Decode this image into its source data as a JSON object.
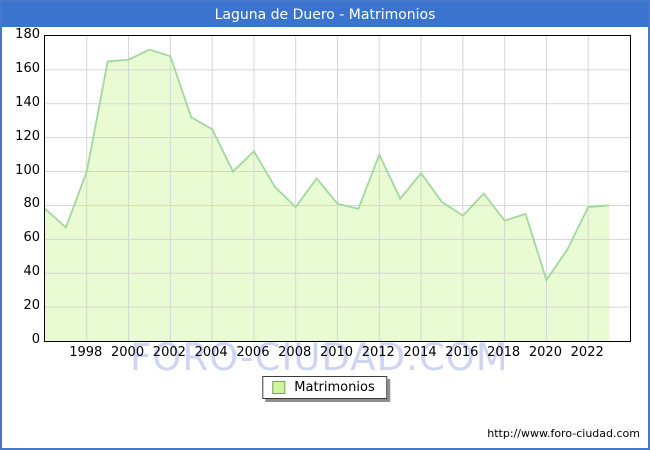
{
  "window": {
    "title": "Laguna de Duero - Matrimonios",
    "footer_url": "http://www.foro-ciudad.com",
    "watermark": "FORO-CIUDAD.COM"
  },
  "legend": {
    "label": "Matrimonios"
  },
  "colors": {
    "titlebar": "#3b74ce",
    "window_border": "#4679cb",
    "area_fill": "#e9fbd2",
    "line": "#a2d89e",
    "grid": "#d6d6d6",
    "plot_border": "#000000",
    "watermark": "#becbee",
    "legend_swatch": "#cdf49e"
  },
  "chart_data": {
    "type": "area",
    "title": "Laguna de Duero - Matrimonios",
    "x": [
      1996,
      1997,
      1998,
      1999,
      2000,
      2001,
      2002,
      2003,
      2004,
      2005,
      2006,
      2007,
      2008,
      2009,
      2010,
      2011,
      2012,
      2013,
      2014,
      2015,
      2016,
      2017,
      2018,
      2019,
      2020,
      2021,
      2022,
      2023
    ],
    "series": [
      {
        "name": "Matrimonios",
        "values": [
          78,
          67,
          100,
          165,
          166,
          172,
          168,
          132,
          125,
          100,
          112,
          91,
          79,
          96,
          81,
          78,
          110,
          84,
          99,
          82,
          74,
          87,
          71,
          75,
          36,
          54,
          79,
          80
        ]
      }
    ],
    "xlim": [
      1996,
      2024
    ],
    "ylim": [
      0,
      180
    ],
    "y_ticks": [
      0,
      20,
      40,
      60,
      80,
      100,
      120,
      140,
      160,
      180
    ],
    "x_tick_labels": [
      1998,
      2000,
      2002,
      2004,
      2006,
      2008,
      2010,
      2012,
      2014,
      2016,
      2018,
      2020,
      2022
    ],
    "grid": true,
    "legend_position": "bottom-center"
  }
}
